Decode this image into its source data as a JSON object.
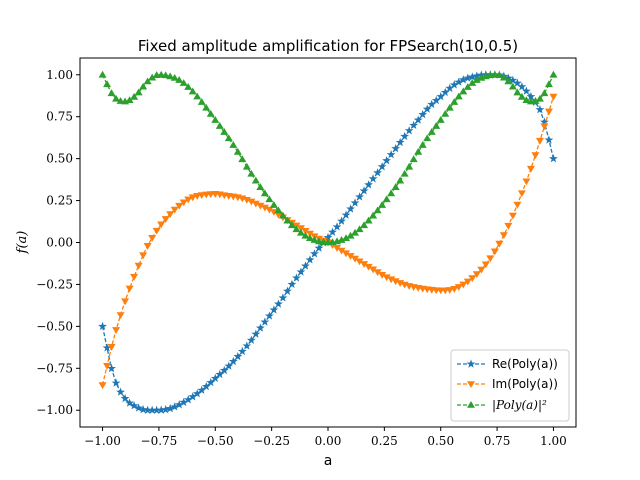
{
  "chart_data": {
    "type": "line",
    "title": "Fixed amplitude amplification for FPSearch(10,0.5)",
    "xlabel": "a",
    "ylabel": "f(a)",
    "xlim": [
      -1.1,
      1.1
    ],
    "ylim": [
      -1.1,
      1.1
    ],
    "x_ticks": [
      -1.0,
      -0.75,
      -0.5,
      -0.25,
      0.0,
      0.25,
      0.5,
      0.75,
      1.0
    ],
    "x_tick_labels": [
      "−1.00",
      "−0.75",
      "−0.50",
      "−0.25",
      "0.00",
      "0.25",
      "0.50",
      "0.75",
      "1.00"
    ],
    "y_ticks": [
      -1.0,
      -0.75,
      -0.5,
      -0.25,
      0.0,
      0.25,
      0.5,
      0.75,
      1.0
    ],
    "y_tick_labels": [
      "−1.00",
      "−0.75",
      "−0.50",
      "−0.25",
      "0.00",
      "0.25",
      "0.50",
      "0.75",
      "1.00"
    ],
    "grid": false,
    "legend_position": "lower-right",
    "series": [
      {
        "name": "Re(Poly(a))",
        "color": "#1f77b4",
        "marker": "star",
        "linestyle": "dashed",
        "x": [
          -1.0,
          -0.95,
          -0.9,
          -0.85,
          -0.8,
          -0.75,
          -0.7,
          -0.65,
          -0.6,
          -0.55,
          -0.5,
          -0.45,
          -0.4,
          -0.35,
          -0.3,
          -0.25,
          -0.2,
          -0.15,
          -0.1,
          -0.05,
          0.0,
          0.05,
          0.1,
          0.15,
          0.2,
          0.25,
          0.3,
          0.35,
          0.4,
          0.45,
          0.5,
          0.55,
          0.6,
          0.65,
          0.7,
          0.75,
          0.8,
          0.85,
          0.9,
          0.95,
          1.0
        ],
        "y": [
          -0.5,
          -0.8,
          -0.93,
          -0.98,
          -1.0,
          -1.0,
          -0.99,
          -0.96,
          -0.92,
          -0.87,
          -0.81,
          -0.75,
          -0.68,
          -0.6,
          -0.51,
          -0.42,
          -0.33,
          -0.23,
          -0.14,
          -0.05,
          0.03,
          0.11,
          0.2,
          0.29,
          0.38,
          0.47,
          0.56,
          0.65,
          0.73,
          0.81,
          0.87,
          0.93,
          0.97,
          0.99,
          1.0,
          1.0,
          0.98,
          0.94,
          0.87,
          0.76,
          0.5
        ]
      },
      {
        "name": "Im(Poly(a))",
        "color": "#ff7f0e",
        "marker": "triangle-down",
        "linestyle": "dashed",
        "x": [
          -1.0,
          -0.95,
          -0.9,
          -0.85,
          -0.8,
          -0.75,
          -0.7,
          -0.65,
          -0.6,
          -0.55,
          -0.5,
          -0.45,
          -0.4,
          -0.35,
          -0.3,
          -0.25,
          -0.2,
          -0.15,
          -0.1,
          -0.05,
          0.0,
          0.05,
          0.1,
          0.15,
          0.2,
          0.25,
          0.3,
          0.35,
          0.4,
          0.45,
          0.5,
          0.55,
          0.6,
          0.65,
          0.7,
          0.75,
          0.8,
          0.85,
          0.9,
          0.95,
          1.0
        ],
        "y": [
          -0.85,
          -0.57,
          -0.35,
          -0.17,
          -0.02,
          0.09,
          0.17,
          0.23,
          0.27,
          0.285,
          0.29,
          0.28,
          0.27,
          0.25,
          0.22,
          0.19,
          0.15,
          0.11,
          0.07,
          0.03,
          0.0,
          -0.04,
          -0.08,
          -0.12,
          -0.16,
          -0.2,
          -0.23,
          -0.255,
          -0.27,
          -0.28,
          -0.285,
          -0.28,
          -0.25,
          -0.2,
          -0.13,
          -0.03,
          0.1,
          0.26,
          0.44,
          0.65,
          0.87
        ]
      },
      {
        "name": "|Poly(a)|²",
        "color": "#2ca02c",
        "marker": "triangle-up",
        "linestyle": "dashed",
        "x": [
          -1.0,
          -0.95,
          -0.9,
          -0.85,
          -0.8,
          -0.75,
          -0.7,
          -0.65,
          -0.6,
          -0.55,
          -0.5,
          -0.45,
          -0.4,
          -0.35,
          -0.3,
          -0.25,
          -0.2,
          -0.15,
          -0.1,
          -0.05,
          0.0,
          0.05,
          0.1,
          0.15,
          0.2,
          0.25,
          0.3,
          0.35,
          0.4,
          0.45,
          0.5,
          0.55,
          0.6,
          0.65,
          0.7,
          0.75,
          0.8,
          0.85,
          0.9,
          0.95,
          1.0
        ],
        "y": [
          1.0,
          0.87,
          0.84,
          0.88,
          0.96,
          1.0,
          0.99,
          0.96,
          0.9,
          0.82,
          0.73,
          0.64,
          0.54,
          0.43,
          0.33,
          0.24,
          0.16,
          0.09,
          0.04,
          0.01,
          0.0,
          0.01,
          0.04,
          0.09,
          0.16,
          0.24,
          0.33,
          0.43,
          0.54,
          0.64,
          0.73,
          0.82,
          0.9,
          0.96,
          0.99,
          1.0,
          0.96,
          0.88,
          0.84,
          0.87,
          1.0
        ]
      }
    ]
  }
}
